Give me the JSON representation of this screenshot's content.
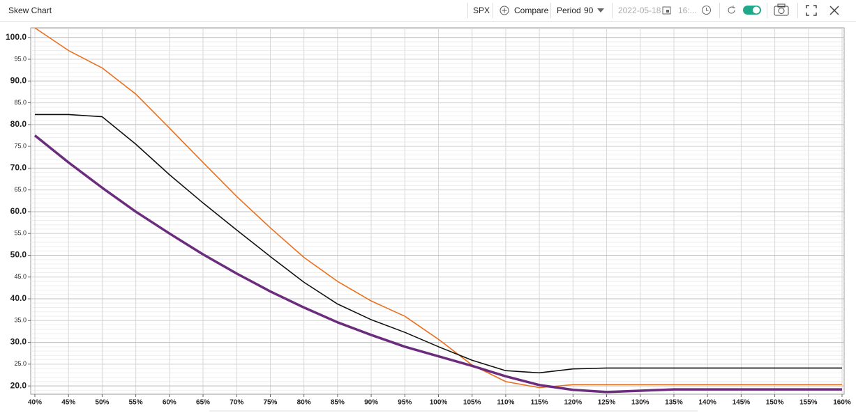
{
  "toolbar": {
    "title": "Skew Chart",
    "symbol": "SPX",
    "compare": "Compare",
    "period_label": "Period",
    "period_value": "90",
    "date": "2022-05-18",
    "time": "16:..."
  },
  "chart_data": {
    "type": "line",
    "categories": [
      "40%",
      "45%",
      "50%",
      "55%",
      "60%",
      "65%",
      "70%",
      "75%",
      "80%",
      "85%",
      "90%",
      "95%",
      "100%",
      "105%",
      "110%",
      "115%",
      "120%",
      "125%",
      "130%",
      "135%",
      "140%",
      "145%",
      "150%",
      "155%",
      "160%"
    ],
    "series": [
      {
        "color": "#e8701e",
        "values": [
          102.2,
          97,
          93,
          87,
          79.2,
          71.3,
          63.5,
          56.3,
          49.5,
          44,
          39.5,
          36,
          30.7,
          24.8,
          21,
          19.6,
          20.3,
          20.3,
          20.3,
          20.3,
          20.3,
          20.3,
          20.3,
          20.3,
          20.3
        ]
      },
      {
        "color": "#111111",
        "values": [
          82.3,
          82.3,
          81.8,
          75.5,
          68.5,
          62,
          55.8,
          49.7,
          43.8,
          38.8,
          35.2,
          32.3,
          29,
          25.9,
          23.5,
          23,
          23.9,
          24.1,
          24.1,
          24.1,
          24.1,
          24.1,
          24.1,
          24.1,
          24.1
        ]
      },
      {
        "color": "#6b2c7e",
        "values": [
          77.5,
          71.3,
          65.5,
          60,
          55,
          50.2,
          45.8,
          41.7,
          38,
          34.6,
          31.7,
          29,
          26.8,
          24.6,
          22.2,
          20.2,
          19.1,
          18.6,
          18.9,
          19.2,
          19.2,
          19.2,
          19.2,
          19.2,
          19.2
        ]
      }
    ],
    "ylim": [
      18.1,
      102.2
    ],
    "yticks": [
      {
        "value": 20,
        "label": "20.0"
      },
      {
        "value": 25,
        "label": "25.0"
      },
      {
        "value": 30,
        "label": "30.0"
      },
      {
        "value": 35,
        "label": "35.0"
      },
      {
        "value": 40,
        "label": "40.0"
      },
      {
        "value": 45,
        "label": "45.0"
      },
      {
        "value": 50,
        "label": "50.0"
      },
      {
        "value": 55,
        "label": "55.0"
      },
      {
        "value": 60,
        "label": "60.0"
      },
      {
        "value": 65,
        "label": "65.0"
      },
      {
        "value": 70,
        "label": "70.0"
      },
      {
        "value": 75,
        "label": "75.0"
      },
      {
        "value": 80,
        "label": "80.0"
      },
      {
        "value": 85,
        "label": "85.0"
      },
      {
        "value": 90,
        "label": "90.0"
      },
      {
        "value": 95,
        "label": "95.0"
      },
      {
        "value": 100,
        "label": "100.0"
      }
    ],
    "grid": true
  }
}
